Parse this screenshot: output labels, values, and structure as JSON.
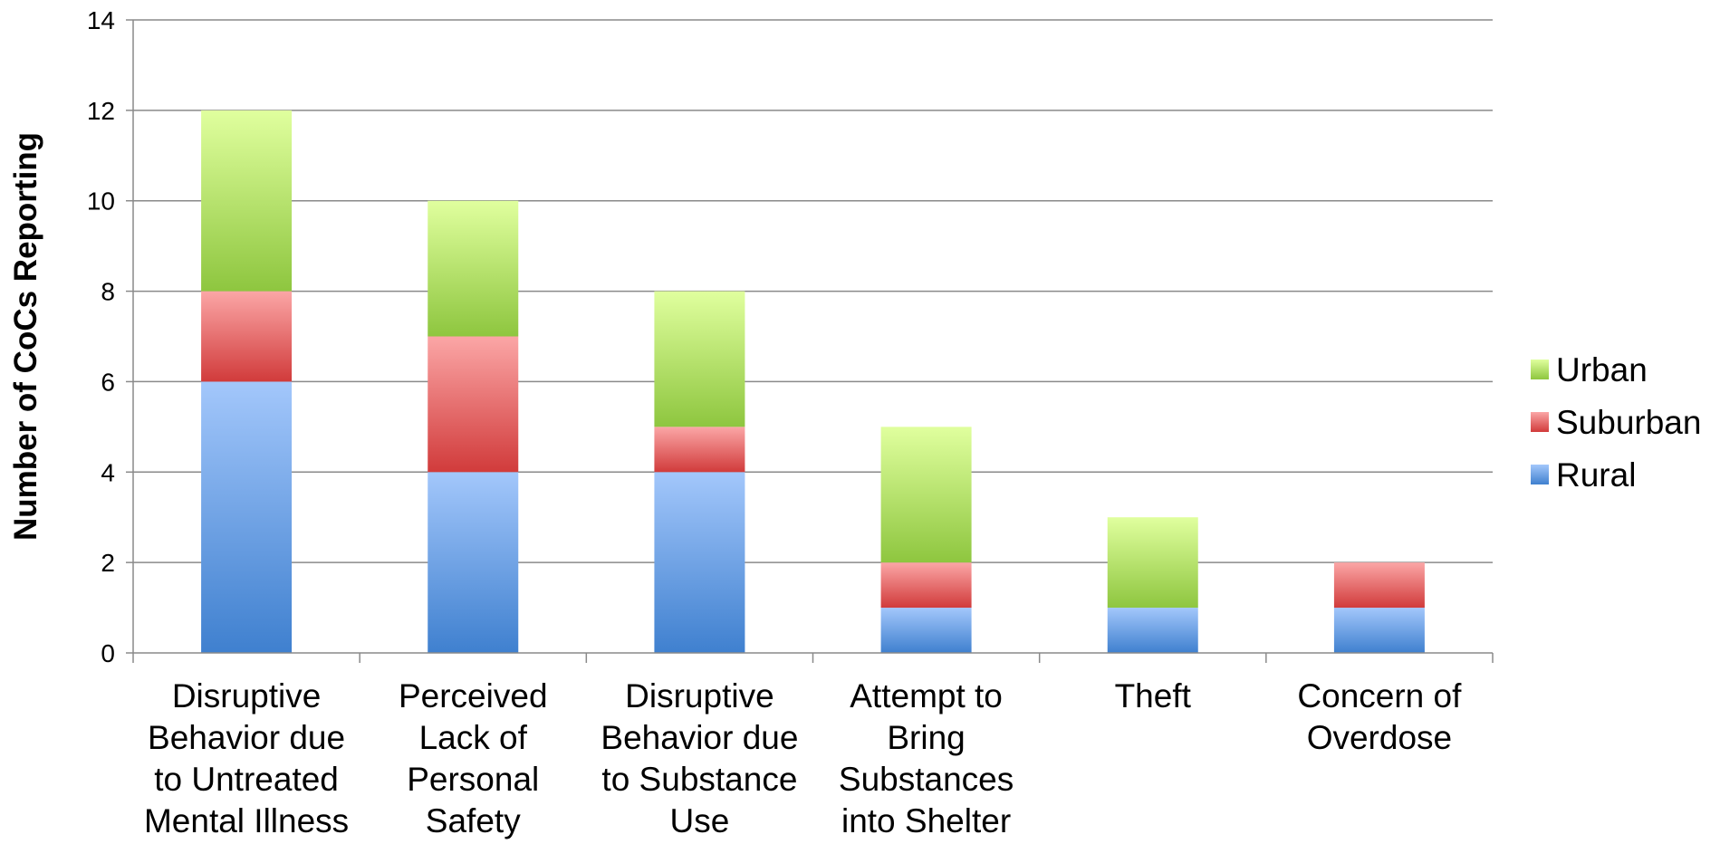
{
  "chart_data": {
    "type": "bar",
    "stacked": true,
    "title": "",
    "xlabel": "",
    "ylabel": "Number of CoCs Reporting",
    "ylim": [
      0,
      14
    ],
    "yticks": [
      0,
      2,
      4,
      6,
      8,
      10,
      12,
      14
    ],
    "grid": "horizontal",
    "legend_position": "right",
    "categories": [
      [
        "Disruptive",
        "Behavior due",
        "to Untreated",
        "Mental Illness"
      ],
      [
        "Perceived",
        "Lack of",
        "Personal",
        "Safety"
      ],
      [
        "Disruptive",
        "Behavior due",
        "to Substance",
        "Use"
      ],
      [
        "Attempt to",
        "Bring",
        "Substances",
        "into Shelter"
      ],
      [
        "Theft"
      ],
      [
        "Concern of",
        "Overdose"
      ]
    ],
    "series": [
      {
        "name": "Rural",
        "values": [
          6,
          4,
          4,
          1,
          1,
          1
        ],
        "color_light": "#a3c7fb",
        "color_dark": "#3f80cf"
      },
      {
        "name": "Suburban",
        "values": [
          2,
          3,
          1,
          1,
          0,
          1
        ],
        "color_light": "#fba6a6",
        "color_dark": "#d13b3b"
      },
      {
        "name": "Urban",
        "values": [
          4,
          3,
          3,
          3,
          2,
          0
        ],
        "color_light": "#e0ff9e",
        "color_dark": "#8ec63f"
      }
    ],
    "legend_order": [
      "Urban",
      "Suburban",
      "Rural"
    ]
  }
}
